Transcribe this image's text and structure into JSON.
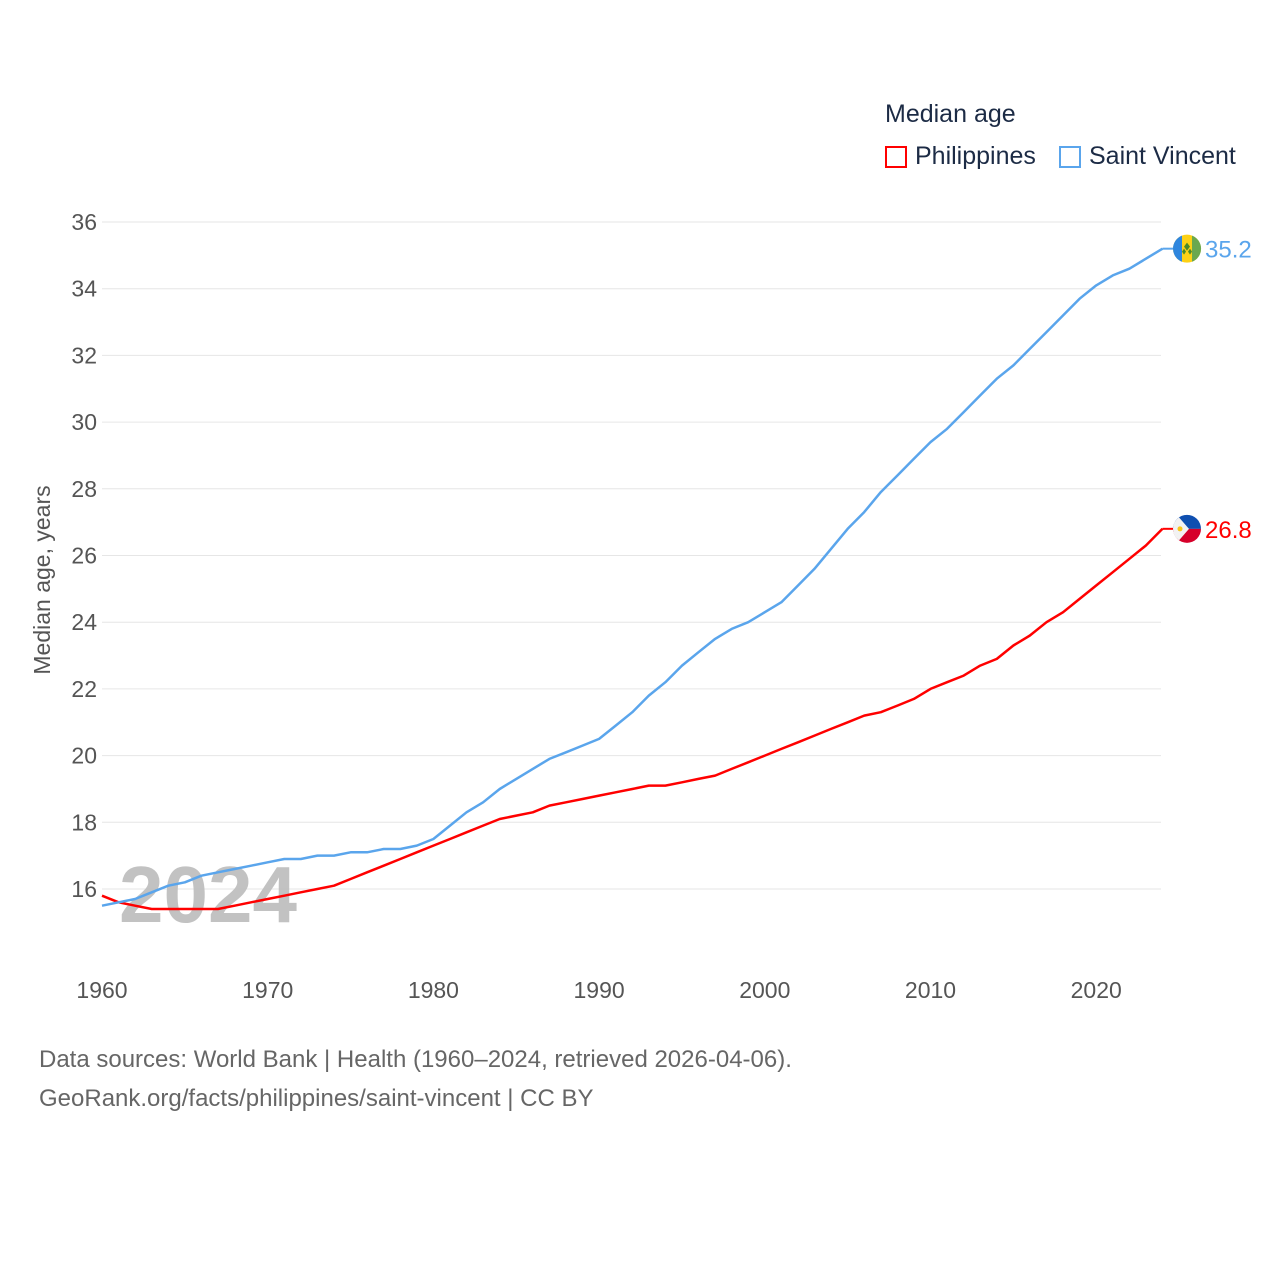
{
  "chart_data": {
    "type": "line",
    "title": "Median age",
    "xlabel": "",
    "ylabel": "Median age, years",
    "xlim": [
      1960,
      2024
    ],
    "ylim": [
      14,
      36
    ],
    "yticks": [
      16,
      18,
      20,
      22,
      24,
      26,
      28,
      30,
      32,
      34,
      36
    ],
    "xticks": [
      1960,
      1970,
      1980,
      1990,
      2000,
      2010,
      2020
    ],
    "grid": true,
    "legend_position": "top-right",
    "watermark_year": "2024",
    "x_start": 1960,
    "series": [
      {
        "name": "Philippines",
        "color": "#ff0000",
        "end_label": "26.8",
        "values": [
          15.8,
          15.6,
          15.5,
          15.4,
          15.4,
          15.4,
          15.4,
          15.4,
          15.5,
          15.6,
          15.7,
          15.8,
          15.9,
          16.0,
          16.1,
          16.3,
          16.5,
          16.7,
          16.9,
          17.1,
          17.3,
          17.5,
          17.7,
          17.9,
          18.1,
          18.2,
          18.3,
          18.5,
          18.6,
          18.7,
          18.8,
          18.9,
          19.0,
          19.1,
          19.1,
          19.2,
          19.3,
          19.4,
          19.6,
          19.8,
          20.0,
          20.2,
          20.4,
          20.6,
          20.8,
          21.0,
          21.2,
          21.3,
          21.5,
          21.7,
          22.0,
          22.2,
          22.4,
          22.7,
          22.9,
          23.3,
          23.6,
          24.0,
          24.3,
          24.7,
          25.1,
          25.5,
          25.9,
          26.3,
          26.8
        ]
      },
      {
        "name": "Saint Vincent",
        "color": "#5aa5ec",
        "end_label": "35.2",
        "values": [
          15.5,
          15.6,
          15.7,
          15.9,
          16.1,
          16.2,
          16.4,
          16.5,
          16.6,
          16.7,
          16.8,
          16.9,
          16.9,
          17.0,
          17.0,
          17.1,
          17.1,
          17.2,
          17.2,
          17.3,
          17.5,
          17.9,
          18.3,
          18.6,
          19.0,
          19.3,
          19.6,
          19.9,
          20.1,
          20.3,
          20.5,
          20.9,
          21.3,
          21.8,
          22.2,
          22.7,
          23.1,
          23.5,
          23.8,
          24.0,
          24.3,
          24.6,
          25.1,
          25.6,
          26.2,
          26.8,
          27.3,
          27.9,
          28.4,
          28.9,
          29.4,
          29.8,
          30.3,
          30.8,
          31.3,
          31.7,
          32.2,
          32.7,
          33.2,
          33.7,
          34.1,
          34.4,
          34.6,
          34.9,
          35.2
        ]
      }
    ]
  },
  "source_line1": "Data sources: World Bank | Health (1960–2024, retrieved 2026-04-06).",
  "source_line2": "GeoRank.org/facts/philippines/saint-vincent | CC BY"
}
